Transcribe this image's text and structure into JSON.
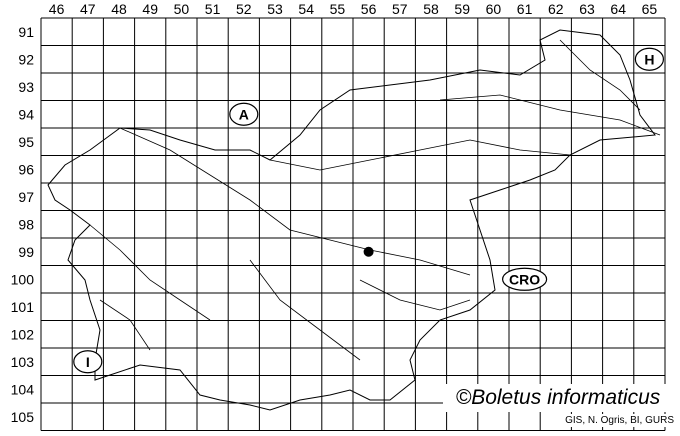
{
  "map": {
    "columns": [
      "46",
      "47",
      "48",
      "49",
      "50",
      "51",
      "52",
      "53",
      "54",
      "55",
      "56",
      "57",
      "58",
      "59",
      "60",
      "61",
      "62",
      "63",
      "64",
      "65"
    ],
    "rows": [
      "91",
      "92",
      "93",
      "94",
      "95",
      "96",
      "97",
      "98",
      "99",
      "100",
      "101",
      "102",
      "103",
      "104",
      "105"
    ],
    "country_labels": [
      {
        "code": "A",
        "col": "52",
        "row": "94"
      },
      {
        "code": "H",
        "col": "65",
        "row": "92"
      },
      {
        "code": "CRO",
        "col": "61",
        "row": "100"
      },
      {
        "code": "I",
        "col": "47",
        "row": "103"
      }
    ],
    "occurrences": [
      {
        "col": "56",
        "row": "99"
      }
    ],
    "line_color": "#000000"
  },
  "credit": "©Boletus informaticus",
  "source": "GIS, N. Ogris, BI, GURS"
}
